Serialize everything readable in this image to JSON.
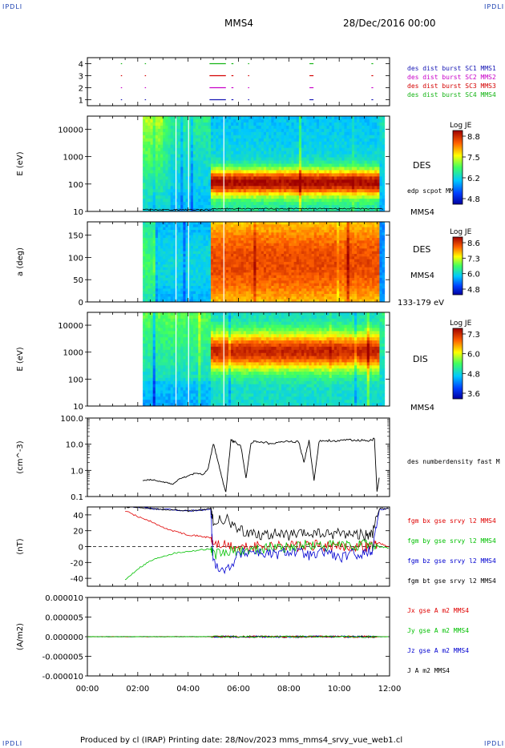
{
  "header": {
    "corner_left": "IPDLI",
    "corner_right": "IPDLI",
    "spacecraft": "MMS4",
    "date": "28/Dec/2016 00:00",
    "bottom_left_corner": "IPDLI",
    "bottom_right_corner": "IPDLI"
  },
  "footer": {
    "text": "Produced by cl (IRAP)   Printing date: 28/Nov/2023   mms_mms4_srvy_vue_web1.cl"
  },
  "colors": {
    "mms1": "#1515b4",
    "mms2": "#c800c8",
    "mms3": "#d40000",
    "mms4": "#14b414",
    "bx": "#e00000",
    "by": "#00c000",
    "bz": "#0000d0",
    "bt": "#000000"
  },
  "chart_data": [
    {
      "type": "scatter",
      "name": "burst availability",
      "yticks": [
        "1",
        "2",
        "3",
        "4"
      ],
      "ylim": [
        0.5,
        4.5
      ],
      "labels": [
        "des dist burst SC1 MMS1",
        "des dist burst SC2 MMS2",
        "des dist burst SC3 MMS3",
        "des dist burst SC4 MMS4"
      ],
      "intervals_hours": [
        [
          1.33,
          1.35
        ],
        [
          2.28,
          2.3
        ],
        [
          4.85,
          5.5
        ],
        [
          5.72,
          5.8
        ],
        [
          6.38,
          6.42
        ],
        [
          8.82,
          8.98
        ],
        [
          11.28,
          11.35
        ]
      ]
    },
    {
      "type": "heatmap",
      "name": "DES energy spectrogram",
      "ylabel": "E (eV)",
      "yscale": "log",
      "yticks": [
        "10",
        "100",
        "1000",
        "10000"
      ],
      "ylim": [
        10,
        30000
      ],
      "label": "DES",
      "overlay_label": "edp scpot MMS4",
      "spacecraft_label": "MMS4",
      "colorbar_title": "Log JE",
      "colorbar_ticks": [
        "8.8",
        "7.5",
        "6.2",
        "4.8"
      ]
    },
    {
      "type": "heatmap",
      "name": "DES pitch angle",
      "ylabel": "a (deg)",
      "yticks": [
        "0",
        "50",
        "100",
        "150"
      ],
      "ylim": [
        0,
        180
      ],
      "label": "DES",
      "spacecraft_label": "MMS4",
      "energy_range": "133-179 eV",
      "colorbar_title": "Log JE",
      "colorbar_ticks": [
        "8.6",
        "7.3",
        "6.0",
        "4.8"
      ]
    },
    {
      "type": "heatmap",
      "name": "DIS energy spectrogram",
      "ylabel": "E (eV)",
      "yscale": "log",
      "yticks": [
        "10",
        "100",
        "1000",
        "10000"
      ],
      "ylim": [
        10,
        30000
      ],
      "label": "DIS",
      "spacecraft_label": "MMS4",
      "colorbar_title": "Log JE",
      "colorbar_ticks": [
        "7.3",
        "6.0",
        "4.8",
        "3.6"
      ]
    },
    {
      "type": "line",
      "name": "density",
      "ylabel": "(cm^-3)",
      "yscale": "log",
      "yticks": [
        "0.1",
        "1.0",
        "10.0",
        "100.0"
      ],
      "ylim": [
        0.1,
        100
      ],
      "series_label": "des numberdensity fast M",
      "x_hours": [
        2.2,
        2.5,
        2.8,
        3.1,
        3.4,
        3.7,
        4.0,
        4.3,
        4.6,
        4.8,
        5.0,
        5.2,
        5.4,
        5.5,
        5.7,
        5.9,
        6.1,
        6.3,
        6.5,
        6.8,
        7.2,
        7.6,
        8.0,
        8.4,
        8.6,
        8.8,
        9.0,
        9.2,
        9.6,
        10.0,
        10.4,
        10.8,
        11.2,
        11.4,
        11.5,
        11.6
      ],
      "y": [
        0.4,
        0.45,
        0.4,
        0.35,
        0.3,
        0.5,
        0.6,
        0.8,
        0.7,
        1.2,
        11,
        2,
        0.3,
        0.15,
        14,
        12,
        8,
        0.5,
        12,
        13,
        11,
        12,
        13,
        12,
        2,
        14,
        0.4,
        13,
        14,
        13,
        15,
        14,
        14,
        16,
        0.15,
        0.6
      ]
    },
    {
      "type": "line",
      "name": "magnetic field",
      "ylabel": "(nT)",
      "yticks": [
        "-40",
        "-20",
        "0",
        "20",
        "40"
      ],
      "ylim": [
        -50,
        50
      ],
      "x_hours": [
        1.5,
        2.0,
        2.5,
        3.0,
        3.5,
        4.0,
        4.5,
        4.9,
        5.0,
        5.5,
        6.0,
        6.5,
        7.0,
        7.5,
        8.0,
        8.5,
        9.0,
        9.5,
        10.0,
        10.5,
        11.0,
        11.3,
        11.6,
        12.0
      ],
      "series": [
        {
          "name": "fgm bx gse srvy l2 MMS4",
          "values": [
            45,
            38,
            32,
            24,
            19,
            15,
            13,
            11,
            4,
            1,
            -2,
            -1,
            2,
            0,
            3,
            -1,
            2,
            0,
            -1,
            1,
            0,
            1,
            5,
            -2
          ]
        },
        {
          "name": "fgm by gse srvy l2 MMS4",
          "values": [
            -42,
            -28,
            -18,
            -12,
            -8,
            -6,
            -4,
            -3,
            -10,
            -8,
            -5,
            -4,
            -2,
            0,
            -1,
            2,
            1,
            0,
            2,
            0,
            3,
            2,
            0,
            -2
          ]
        },
        {
          "name": "fgm bz gse srvy l2 MMS4",
          "values": [
            50,
            50,
            48,
            47,
            46,
            45,
            46,
            47,
            -20,
            -30,
            -10,
            -5,
            -8,
            -10,
            -5,
            -8,
            -12,
            -5,
            -15,
            -10,
            -8,
            -5,
            47,
            48
          ]
        },
        {
          "name": "fgm bt gse srvy l2 MMS4",
          "values": [
            50,
            50,
            48,
            47,
            46,
            45,
            46,
            48,
            30,
            35,
            20,
            18,
            15,
            16,
            14,
            15,
            17,
            15,
            18,
            16,
            15,
            14,
            48,
            48
          ]
        }
      ]
    },
    {
      "type": "line",
      "name": "current density",
      "ylabel": "(A/m2)",
      "yticks": [
        "-0.000010",
        "-0.000005",
        "0.000000",
        "0.000005",
        "0.000010"
      ],
      "ylim": [
        -1e-05,
        1e-05
      ],
      "series": [
        {
          "name": "Jx gse A m2 MMS4",
          "values": [
            0,
            0,
            0,
            0,
            0,
            0,
            0
          ]
        },
        {
          "name": "Jy gse A m2 MMS4",
          "values": [
            0,
            0,
            0,
            0,
            0,
            0,
            0
          ]
        },
        {
          "name": "Jz gse A m2 MMS4",
          "values": [
            0,
            0,
            0,
            0,
            0,
            0,
            0
          ]
        },
        {
          "name": "J A m2 MMS4",
          "values": [
            0,
            0,
            0,
            0,
            0,
            0,
            0
          ]
        }
      ]
    }
  ],
  "xaxis": {
    "ticks": [
      "00:00",
      "02:00",
      "04:00",
      "06:00",
      "08:00",
      "10:00",
      "12:00"
    ],
    "xlim_hours": [
      0,
      12
    ]
  }
}
